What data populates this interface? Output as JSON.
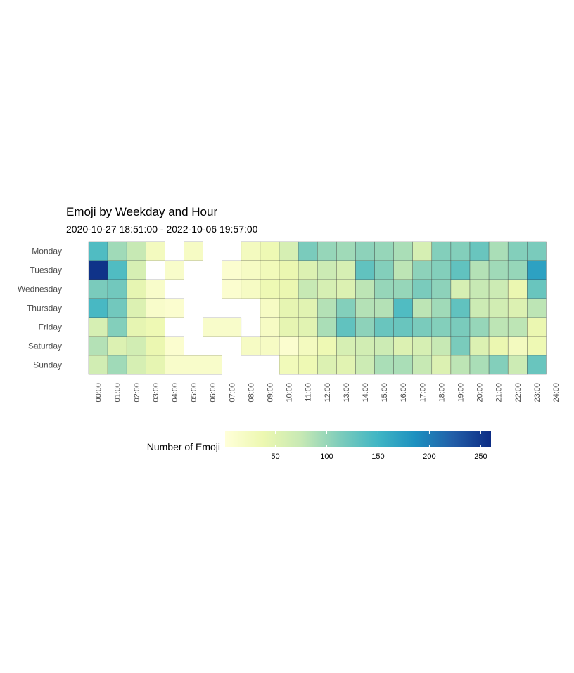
{
  "chart_data": {
    "type": "heatmap",
    "title": "Emoji by Weekday and Hour",
    "subtitle": "2020-10-27 18:51:00  -  2022-10-06 19:57:00",
    "y_categories": [
      "Monday",
      "Tuesday",
      "Wednesday",
      "Thursday",
      "Friday",
      "Saturday",
      "Sunday"
    ],
    "x_tick_labels": [
      "00:00",
      "01:00",
      "02:00",
      "03:00",
      "04:00",
      "05:00",
      "06:00",
      "07:00",
      "08:00",
      "09:00",
      "10:00",
      "11:00",
      "12:00",
      "13:00",
      "14:00",
      "15:00",
      "16:00",
      "17:00",
      "18:00",
      "19:00",
      "20:00",
      "21:00",
      "22:00",
      "23:00",
      "24:00"
    ],
    "values": [
      [
        140,
        95,
        75,
        25,
        null,
        20,
        null,
        null,
        25,
        35,
        60,
        115,
        100,
        95,
        105,
        100,
        90,
        60,
        110,
        110,
        125,
        90,
        110,
        115
      ],
      [
        255,
        140,
        60,
        null,
        15,
        null,
        null,
        10,
        20,
        30,
        40,
        55,
        70,
        60,
        130,
        110,
        80,
        105,
        110,
        130,
        85,
        95,
        100,
        170
      ],
      [
        115,
        120,
        45,
        15,
        null,
        null,
        null,
        10,
        20,
        35,
        40,
        75,
        60,
        55,
        80,
        100,
        100,
        115,
        105,
        60,
        75,
        70,
        40,
        125
      ],
      [
        145,
        120,
        55,
        15,
        10,
        null,
        null,
        null,
        null,
        20,
        45,
        50,
        85,
        110,
        85,
        85,
        140,
        80,
        95,
        130,
        70,
        65,
        55,
        80
      ],
      [
        60,
        110,
        45,
        35,
        null,
        null,
        15,
        15,
        null,
        20,
        45,
        50,
        90,
        130,
        105,
        125,
        125,
        115,
        110,
        115,
        100,
        80,
        80,
        40
      ],
      [
        85,
        55,
        65,
        40,
        10,
        null,
        null,
        null,
        20,
        20,
        10,
        25,
        35,
        60,
        65,
        70,
        55,
        60,
        75,
        115,
        55,
        40,
        25,
        35
      ],
      [
        65,
        95,
        60,
        45,
        15,
        15,
        15,
        null,
        null,
        null,
        30,
        35,
        55,
        50,
        70,
        90,
        90,
        75,
        55,
        80,
        90,
        110,
        70,
        125
      ]
    ],
    "colorbar": {
      "title": "Number of Emoji",
      "ticks": [
        50,
        100,
        150,
        200,
        250
      ],
      "min": 1,
      "max": 260,
      "palette": [
        "#ffffd9",
        "#edf8b1",
        "#c7e9b4",
        "#7fcdbb",
        "#41b6c4",
        "#1d91c0",
        "#225ea8",
        "#0c2c84"
      ]
    }
  }
}
